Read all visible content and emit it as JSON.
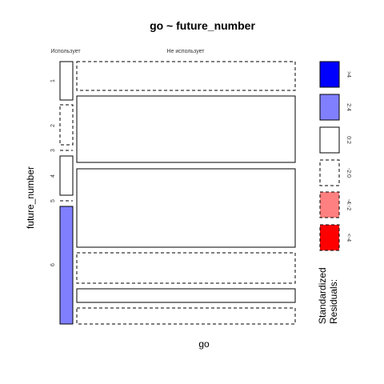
{
  "chart_data": {
    "type": "mosaic",
    "title": "go ~ future_number",
    "xlabel": "go",
    "ylabel": "future_number",
    "columns": [
      "Использует",
      "Не использует"
    ],
    "rows": [
      "1",
      "2",
      "3",
      "4",
      "5",
      "6"
    ],
    "column_proportions": [
      0.07,
      0.93
    ],
    "cells": [
      {
        "row": "1",
        "column": "Использует",
        "proportion": 0.15,
        "residual_band": "0:2"
      },
      {
        "row": "2",
        "column": "Использует",
        "proportion": 0.16,
        "residual_band": "-2:0"
      },
      {
        "row": "3",
        "column": "Использует",
        "proportion": 0.0,
        "residual_band": "-2:0"
      },
      {
        "row": "4",
        "column": "Использует",
        "proportion": 0.16,
        "residual_band": "0:2"
      },
      {
        "row": "5",
        "column": "Использует",
        "proportion": 0.0,
        "residual_band": "-2:0"
      },
      {
        "row": "6",
        "column": "Использует",
        "proportion": 0.45,
        "residual_band": "2:4"
      },
      {
        "row": "1",
        "column": "Не использует",
        "proportion": 0.12,
        "residual_band": "-2:0"
      },
      {
        "row": "2",
        "column": "Не использует",
        "proportion": 0.26,
        "residual_band": "0:2"
      },
      {
        "row": "4",
        "column": "Не использует",
        "proportion": 0.31,
        "residual_band": "0:2"
      },
      {
        "row": "6",
        "column": "Не использует",
        "proportion": 0.12,
        "residual_band": "-2:0"
      },
      {
        "row": "6",
        "column": "Не использует",
        "proportion": 0.05,
        "residual_band": "0:2"
      },
      {
        "row": "6",
        "column": "Не использует",
        "proportion": 0.06,
        "residual_band": "-2:0"
      }
    ],
    "legend": {
      "title_line1": "Standardized",
      "title_line2": "Residuals:",
      "placement": "right",
      "items": [
        {
          "label": ">4",
          "color": "#0000ff",
          "dashed": false
        },
        {
          "label": "2:4",
          "color": "#8080ff",
          "dashed": false
        },
        {
          "label": "0:2",
          "color": "#ffffff",
          "dashed": false
        },
        {
          "label": "-2:0",
          "color": "#ffffff",
          "dashed": true
        },
        {
          "label": "-4:-2",
          "color": "#ff8080",
          "dashed": true
        },
        {
          "label": "<-4",
          "color": "#ff0000",
          "dashed": true
        }
      ]
    }
  }
}
